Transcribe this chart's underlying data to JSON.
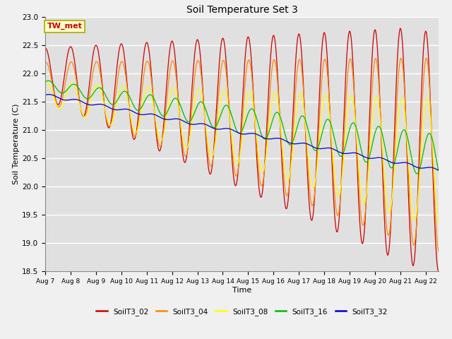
{
  "title": "Soil Temperature Set 3",
  "xlabel": "Time",
  "ylabel": "Soil Temperature (C)",
  "ylim": [
    18.5,
    23.0
  ],
  "series_names": [
    "SoilT3_02",
    "SoilT3_04",
    "SoilT3_08",
    "SoilT3_16",
    "SoilT3_32"
  ],
  "series_colors": [
    "#cc0000",
    "#ff8800",
    "#ffff00",
    "#00bb00",
    "#0000cc"
  ],
  "xtick_labels": [
    "Aug 7",
    "Aug 8",
    "Aug 9",
    "Aug 10",
    "Aug 11",
    "Aug 12",
    "Aug 13",
    "Aug 14",
    "Aug 15",
    "Aug 16",
    "Aug 17",
    "Aug 18",
    "Aug 19",
    "Aug 20",
    "Aug 21",
    "Aug 22"
  ],
  "annotation_text": "TW_met",
  "fig_bg_color": "#f0f0f0",
  "plot_bg_color": "#e0e0e0",
  "grid_color": "#ffffff",
  "n_days": 15.5,
  "n_points": 744
}
